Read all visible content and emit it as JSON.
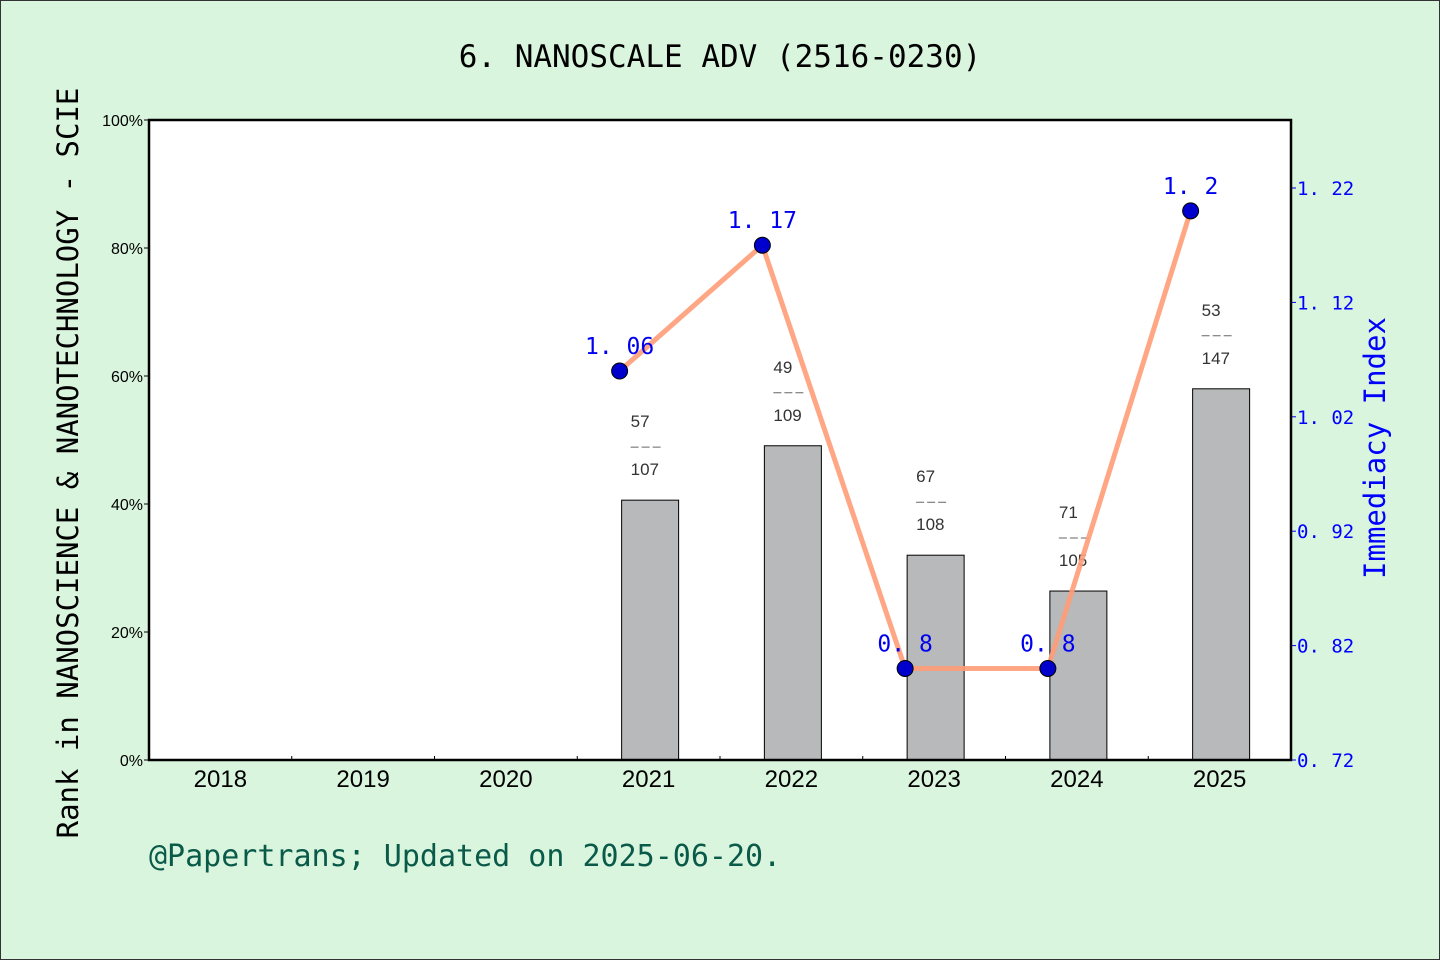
{
  "chart_data": {
    "type": "bar+line",
    "title": "6. NANOSCALE ADV (2516-0230)",
    "ylabel_left": "Rank in NANOSCIENCE & NANOTECHNOLOGY - SCIE",
    "ylabel_right": "Immediacy Index",
    "footer": "@Papertrans; Updated on 2025-06-20.",
    "categories": [
      "2018",
      "2019",
      "2020",
      "2021",
      "2022",
      "2023",
      "2024",
      "2025"
    ],
    "left_ylim": [
      0,
      100
    ],
    "left_ticks": [
      "0%",
      "20%",
      "40%",
      "60%",
      "80%",
      "100%"
    ],
    "right_ylim": [
      0.72,
      1.28
    ],
    "right_ticks": [
      "0.72",
      "0.82",
      "0.92",
      "1.02",
      "1.12",
      "1.22"
    ],
    "bars": [
      {
        "year": "2021",
        "percent": 40.6,
        "rank": "57",
        "total": "107"
      },
      {
        "year": "2022",
        "percent": 49.1,
        "rank": "49",
        "total": "109"
      },
      {
        "year": "2023",
        "percent": 32.0,
        "rank": "67",
        "total": "108"
      },
      {
        "year": "2024",
        "percent": 26.4,
        "rank": "71",
        "total": "105"
      },
      {
        "year": "2025",
        "percent": 58.0,
        "rank": "53",
        "total": "147"
      }
    ],
    "line": [
      {
        "year": "2021",
        "value": 1.06,
        "label": "1.06"
      },
      {
        "year": "2022",
        "value": 1.17,
        "label": "1.17"
      },
      {
        "year": "2023",
        "value": 0.8,
        "label": "0.8"
      },
      {
        "year": "2024",
        "value": 0.8,
        "label": "0.8"
      },
      {
        "year": "2025",
        "value": 1.2,
        "label": "1.2"
      }
    ],
    "colors": {
      "background": "#daf5de",
      "bar": "#b8b9ba",
      "line": "#ff9c78",
      "point": "#0000cc",
      "right_axis": "#0000ff",
      "footer": "#0a5a4a"
    },
    "grid": false
  }
}
